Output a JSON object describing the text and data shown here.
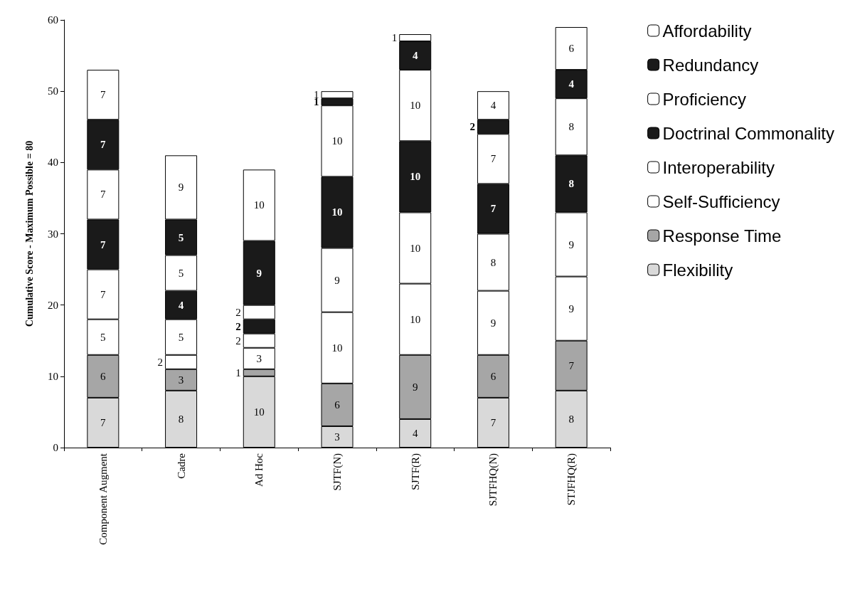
{
  "chart_data": {
    "type": "bar",
    "stacked": true,
    "ylabel": "Cumulative Score - Maximum Possible = 80",
    "categories": [
      "Component Augment",
      "Cadre",
      "Ad Hoc",
      "SJTF(N)",
      "SJTF(R)",
      "SJTFHQ(N)",
      "STJFHQ(R)"
    ],
    "series": [
      {
        "name": "Flexibility",
        "color": "#d9d9d9",
        "values": [
          7,
          8,
          10,
          3,
          4,
          7,
          8
        ]
      },
      {
        "name": "Response Time",
        "color": "#a6a6a6",
        "values": [
          6,
          3,
          1,
          6,
          9,
          6,
          7
        ]
      },
      {
        "name": "Self-Sufficiency",
        "color": "#ffffff",
        "values": [
          5,
          2,
          3,
          10,
          10,
          9,
          9
        ]
      },
      {
        "name": "Interoperability",
        "color": "#ffffff",
        "values": [
          7,
          5,
          2,
          9,
          10,
          8,
          9
        ]
      },
      {
        "name": "Doctrinal Commonality",
        "color": "#1a1a1a",
        "values": [
          7,
          4,
          2,
          10,
          10,
          7,
          8
        ]
      },
      {
        "name": "Proficiency",
        "color": "#ffffff",
        "values": [
          7,
          5,
          2,
          10,
          10,
          7,
          8
        ]
      },
      {
        "name": "Redundancy",
        "color": "#1a1a1a",
        "values": [
          7,
          5,
          9,
          1,
          4,
          2,
          4
        ]
      },
      {
        "name": "Affordability",
        "color": "#ffffff",
        "values": [
          7,
          9,
          10,
          1,
          1,
          4,
          6
        ]
      }
    ],
    "ylim": [
      0,
      60
    ],
    "yticks": [
      0,
      10,
      20,
      30,
      40,
      50,
      60
    ],
    "grid": false,
    "legend": "right",
    "data_labels": true
  }
}
